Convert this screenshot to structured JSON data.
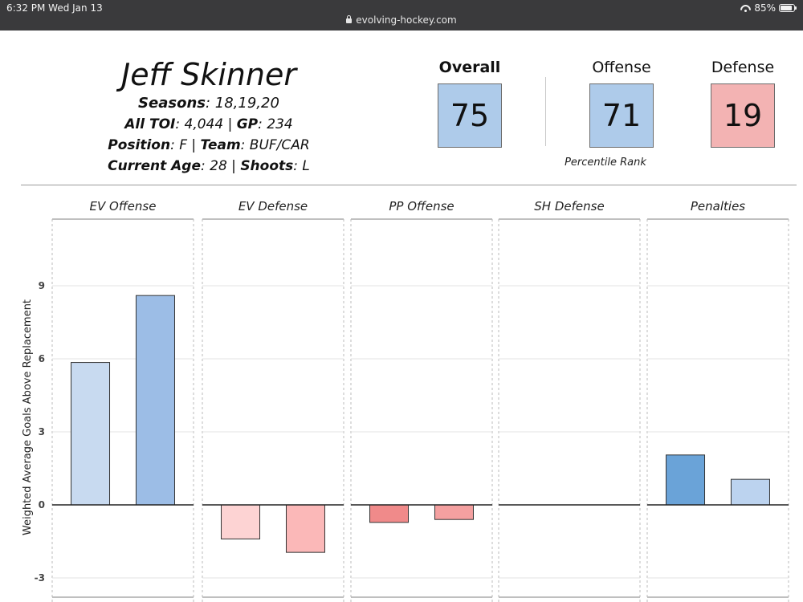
{
  "status_bar": {
    "time": "6:32 PM   Wed Jan 13",
    "url": "evolving-hockey.com",
    "battery": "85%"
  },
  "player": {
    "name": "Jeff Skinner",
    "seasons_label": "Seasons",
    "seasons_value": ": 18,19,20",
    "toi_label": "All TOI",
    "toi_value": ": 4,044 | ",
    "gp_label": "GP",
    "gp_value": ": 234",
    "position_label": "Position",
    "position_value": ": F | ",
    "team_label": "Team",
    "team_value": ": BUF/CAR",
    "age_label": "Current  Age",
    "age_value": ": 28 | ",
    "shoots_label": "Shoots",
    "shoots_value": ": L"
  },
  "ratings": {
    "overall": {
      "label": "Overall",
      "value": "75",
      "color": "#aecbea"
    },
    "offense": {
      "label": "Offense",
      "value": "71",
      "color": "#aecbea"
    },
    "defense": {
      "label": "Defense",
      "value": "19",
      "color": "#f3b3b3"
    },
    "subtitle": "Percentile Rank"
  },
  "chart_data": {
    "type": "bar",
    "ylabel": "Weighted Average Goals Above Replacement",
    "ylim": [
      -3.8,
      12
    ],
    "yticks": [
      -3,
      0,
      3,
      6,
      9
    ],
    "grid": true,
    "facets": [
      {
        "title": "EV Offense",
        "values": [
          5.85,
          8.6
        ],
        "colors": [
          "#c8daf0",
          "#9cbde6"
        ]
      },
      {
        "title": "EV Defense",
        "values": [
          -1.4,
          -1.95
        ],
        "colors": [
          "#fdd3d3",
          "#fbb8b8"
        ]
      },
      {
        "title": "PP Offense",
        "values": [
          -0.72,
          -0.6
        ],
        "colors": [
          "#f08a8a",
          "#f4a0a0"
        ]
      },
      {
        "title": "SH Defense",
        "values": [
          0,
          0
        ],
        "colors": [
          "#f7c4c4",
          "#f7c4c4"
        ]
      },
      {
        "title": "Penalties",
        "values": [
          2.05,
          1.05
        ],
        "colors": [
          "#6aa3d8",
          "#bcd3ef"
        ]
      }
    ]
  }
}
